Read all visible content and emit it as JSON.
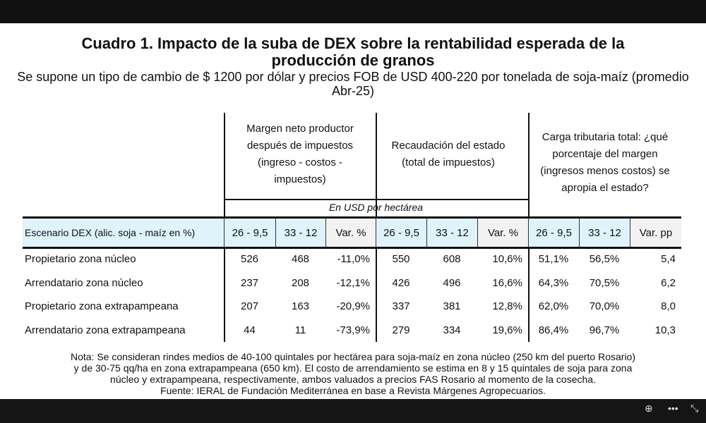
{
  "title": "Cuadro 1. Impacto de la suba de DEX sobre la rentabilidad esperada de la producción de granos",
  "subtitle": "Se supone un tipo de cambio de $ 1200 por dólar y precios FOB de USD 400-220 por tonelada de soja-maíz (promedio Abr-25)",
  "groups": {
    "margen": "Margen neto productor después de impuestos (ingreso - costos - impuestos)",
    "recaudacion": "Recaudación del estado (total de impuestos)",
    "carga": "Carga tributaria total: ¿qué porcentaje del margen (ingresos menos costos) se apropia el estado?",
    "unit": "En USD por hectárea"
  },
  "columns": [
    "Escenario DEX (alic. soja - maíz en %)",
    "26 - 9,5",
    "33 - 12",
    "Var. %",
    "26 - 9,5",
    "33 - 12",
    "Var. %",
    "26 - 9,5",
    "33 - 12",
    "Var. pp"
  ],
  "rows": [
    [
      "Propietario zona núcleo",
      "526",
      "468",
      "-11,0%",
      "550",
      "608",
      "10,6%",
      "51,1%",
      "56,5%",
      "5,4"
    ],
    [
      "Arrendatario zona núcleo",
      "237",
      "208",
      "-12,1%",
      "426",
      "496",
      "16,6%",
      "64,3%",
      "70,5%",
      "6,2"
    ],
    [
      "Propietario zona extrapampeana",
      "207",
      "163",
      "-20,9%",
      "337",
      "381",
      "12,8%",
      "62,0%",
      "70,0%",
      "8,0"
    ],
    [
      "Arrendatario zona extrapampeana",
      "44",
      "11",
      "-73,9%",
      "279",
      "334",
      "19,6%",
      "86,4%",
      "96,7%",
      "10,3"
    ]
  ],
  "note": [
    "Nota: Se consideran rindes medios de 40-100 quintales por hectárea para soja-maíz en zona núcleo (250 km del puerto Rosario)",
    "y de 30-75 qq/ha en zona extrapampeana (650 km). El costo de arrendamiento se estima en 8 y 15 quintales de soja para zona",
    "núcleo y extrapampeana, respectivamente, ambos valuados a precios FAS Rosario al momento de la cosecha.",
    "Fuente: IERAL de Fundación Mediterránea en base a Revista Márgenes Agropecuarios."
  ]
}
